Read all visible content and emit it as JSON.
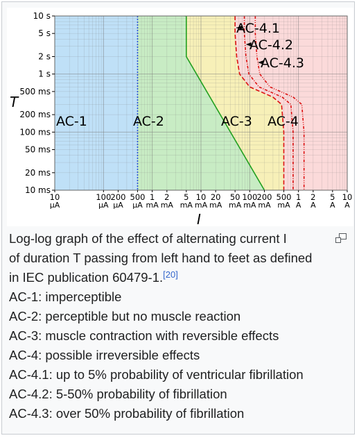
{
  "figure": {
    "y_axis_label": "T",
    "x_axis_label": "I",
    "y_ticks": [
      {
        "label": "10 s",
        "ms": 10000
      },
      {
        "label": "5 s",
        "ms": 5000
      },
      {
        "label": "2 s",
        "ms": 2000
      },
      {
        "label": "1 s",
        "ms": 1000
      },
      {
        "label": "500 ms",
        "ms": 500
      },
      {
        "label": "200 ms",
        "ms": 200
      },
      {
        "label": "100 ms",
        "ms": 100
      },
      {
        "label": "50 ms",
        "ms": 50
      },
      {
        "label": "20 ms",
        "ms": 20
      },
      {
        "label": "10 ms",
        "ms": 10
      }
    ],
    "x_ticks": [
      {
        "num": "10",
        "unit": "μA",
        "ma": 0.01
      },
      {
        "num": "100",
        "unit": "μA",
        "ma": 0.1
      },
      {
        "num": "200",
        "unit": "μA",
        "ma": 0.2
      },
      {
        "num": "500",
        "unit": "μA",
        "ma": 0.5
      },
      {
        "num": "1",
        "unit": "mA",
        "ma": 1
      },
      {
        "num": "2",
        "unit": "mA",
        "ma": 2
      },
      {
        "num": "5",
        "unit": "mA",
        "ma": 5
      },
      {
        "num": "10",
        "unit": "mA",
        "ma": 10
      },
      {
        "num": "20",
        "unit": "mA",
        "ma": 20
      },
      {
        "num": "50",
        "unit": "mA",
        "ma": 50
      },
      {
        "num": "100",
        "unit": "mA",
        "ma": 100
      },
      {
        "num": "200",
        "unit": "mA",
        "ma": 200
      },
      {
        "num": "500",
        "unit": "mA",
        "ma": 500
      },
      {
        "num": "1",
        "unit": "A",
        "ma": 1000
      },
      {
        "num": "2",
        "unit": "A",
        "ma": 2000
      },
      {
        "num": "5",
        "unit": "A",
        "ma": 5000
      },
      {
        "num": "10",
        "unit": "A",
        "ma": 10000
      }
    ],
    "zone_labels": {
      "ac1": "AC-1",
      "ac2": "AC-2",
      "ac3": "AC-3",
      "ac4": "AC-4"
    },
    "curve_labels": {
      "c1": "AC-4.1",
      "c2": "AC-4.2",
      "c3": "AC-4.3"
    },
    "colors": {
      "ac1": "#bfe0f7",
      "ac2": "#c8ecc4",
      "ac3": "#f7f0b8",
      "ac4": "#fbdada",
      "boundary_ac1": "#2a4fd8",
      "boundary_ac2": "#22a020",
      "curves": "#dd1111"
    }
  },
  "caption": {
    "lines": [
      "Log-log graph of the effect of alternating current I",
      "of duration T passing from left hand to feet as defined",
      "in IEC publication 60479-1.",
      "AC-1: imperceptible",
      "AC-2: perceptible but no muscle reaction",
      "AC-3: muscle contraction with reversible effects",
      "AC-4: possible irreversible effects",
      "AC-4.1: up to 5% probability of ventricular fibrillation",
      "AC-4.2: 5-50% probability of fibrillation",
      "AC-4.3: over 50% probability of fibrillation"
    ],
    "reference": "[20]"
  }
}
